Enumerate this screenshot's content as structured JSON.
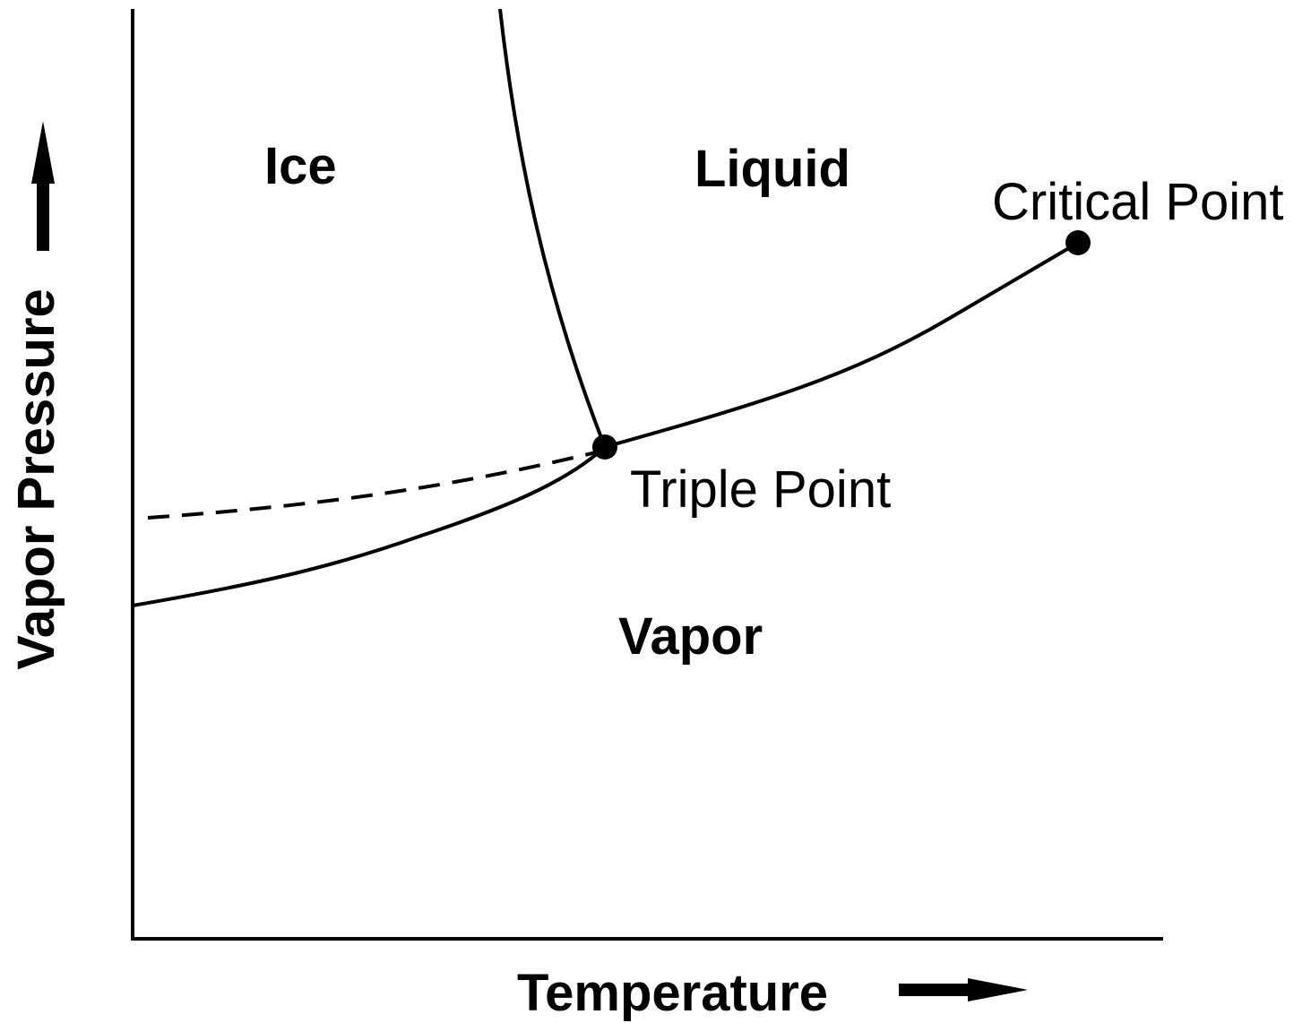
{
  "axes": {
    "x_label": "Temperature",
    "y_label": "Vapor Pressure"
  },
  "regions": [
    {
      "label": "Ice"
    },
    {
      "label": "Liquid"
    },
    {
      "label": "Vapor"
    }
  ],
  "points": [
    {
      "label": "Triple Point"
    },
    {
      "label": "Critical Point"
    }
  ]
}
